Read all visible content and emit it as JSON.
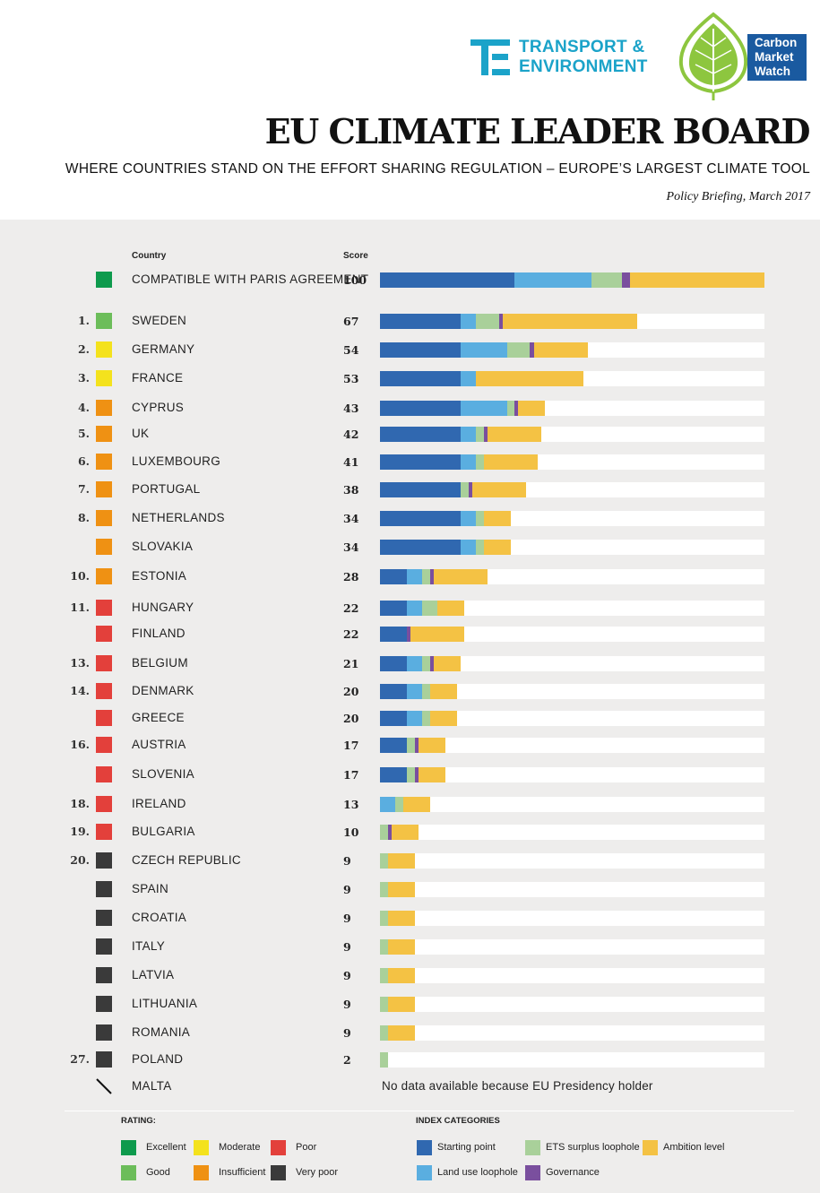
{
  "header": {
    "te_logo_line1": "TRANSPORT &",
    "te_logo_line2": "ENVIRONMENT",
    "cmw_logo_lines": [
      "Carbon",
      "Market",
      "Watch"
    ],
    "title": "EU CLIMATE LEADER BOARD",
    "subtitle": "WHERE COUNTRIES STAND ON THE EFFORT SHARING REGULATION – EUROPE’S LARGEST CLIMATE TOOL",
    "policy_note": "Policy Briefing, March 2017"
  },
  "columns": {
    "country": "Country",
    "score": "Score"
  },
  "colors": {
    "rating": {
      "excellent": "#0e9a4d",
      "good": "#6cbd5a",
      "moderate": "#f4e21d",
      "insufficient": "#ef9113",
      "poor": "#e3403b",
      "very_poor": "#3a3a3a"
    },
    "category": {
      "starting_point": "#3068b0",
      "land_use_loophole": "#5aaee0",
      "ets_surplus_loophole": "#a9d09a",
      "governance": "#7a4f9e",
      "ambition_level": "#f4c244"
    }
  },
  "chart_data": {
    "type": "bar",
    "stacked": true,
    "orientation": "horizontal",
    "title": "EU CLIMATE LEADER BOARD",
    "xlim": [
      0,
      100
    ],
    "series_names": [
      "Starting point",
      "Land use loophole",
      "ETS surplus loophole",
      "Governance",
      "Ambition level"
    ],
    "rows": [
      {
        "rank": "",
        "country": "COMPATIBLE WITH PARIS AGREEMENT",
        "score": "100",
        "rating": "excellent",
        "values": [
          35,
          20,
          8,
          2,
          35
        ]
      },
      {
        "rank": "1.",
        "country": "SWEDEN",
        "score": "67",
        "rating": "good",
        "values": [
          21,
          4,
          6,
          1,
          35
        ]
      },
      {
        "rank": "2.",
        "country": "GERMANY",
        "score": "54",
        "rating": "moderate",
        "values": [
          21,
          12,
          6,
          1,
          14
        ]
      },
      {
        "rank": "3.",
        "country": "FRANCE",
        "score": "53",
        "rating": "moderate",
        "values": [
          21,
          4,
          0,
          0,
          28
        ]
      },
      {
        "rank": "4.",
        "country": "CYPRUS",
        "score": "43",
        "rating": "insufficient",
        "values": [
          21,
          12,
          2,
          1,
          7
        ]
      },
      {
        "rank": "5.",
        "country": "UK",
        "score": "42",
        "rating": "insufficient",
        "values": [
          21,
          4,
          2,
          1,
          14
        ]
      },
      {
        "rank": "6.",
        "country": "LUXEMBOURG",
        "score": "41",
        "rating": "insufficient",
        "values": [
          21,
          4,
          2,
          0,
          14
        ]
      },
      {
        "rank": "7.",
        "country": "PORTUGAL",
        "score": "38",
        "rating": "insufficient",
        "values": [
          21,
          0,
          2,
          1,
          14
        ]
      },
      {
        "rank": "8.",
        "country": "NETHERLANDS",
        "score": "34",
        "rating": "insufficient",
        "values": [
          21,
          4,
          2,
          0,
          7
        ]
      },
      {
        "rank": "",
        "country": "SLOVAKIA",
        "score": "34",
        "rating": "insufficient",
        "values": [
          21,
          4,
          2,
          0,
          7
        ]
      },
      {
        "rank": "10.",
        "country": "ESTONIA",
        "score": "28",
        "rating": "insufficient",
        "values": [
          7,
          4,
          2,
          1,
          14
        ]
      },
      {
        "rank": "11.",
        "country": "HUNGARY",
        "score": "22",
        "rating": "poor",
        "values": [
          7,
          4,
          4,
          0,
          7
        ]
      },
      {
        "rank": "",
        "country": "FINLAND",
        "score": "22",
        "rating": "poor",
        "values": [
          7,
          0,
          0,
          1,
          14
        ]
      },
      {
        "rank": "13.",
        "country": "BELGIUM",
        "score": "21",
        "rating": "poor",
        "values": [
          7,
          4,
          2,
          1,
          7
        ]
      },
      {
        "rank": "14.",
        "country": "DENMARK",
        "score": "20",
        "rating": "poor",
        "values": [
          7,
          4,
          2,
          0,
          7
        ]
      },
      {
        "rank": "",
        "country": "GREECE",
        "score": "20",
        "rating": "poor",
        "values": [
          7,
          4,
          2,
          0,
          7
        ]
      },
      {
        "rank": "16.",
        "country": "AUSTRIA",
        "score": "17",
        "rating": "poor",
        "values": [
          7,
          0,
          2,
          1,
          7
        ]
      },
      {
        "rank": "",
        "country": "SLOVENIA",
        "score": "17",
        "rating": "poor",
        "values": [
          7,
          0,
          2,
          1,
          7
        ]
      },
      {
        "rank": "18.",
        "country": "IRELAND",
        "score": "13",
        "rating": "poor",
        "values": [
          0,
          4,
          2,
          0,
          7
        ]
      },
      {
        "rank": "19.",
        "country": "BULGARIA",
        "score": "10",
        "rating": "poor",
        "values": [
          0,
          0,
          2,
          1,
          7
        ]
      },
      {
        "rank": "20.",
        "country": "CZECH REPUBLIC",
        "score": "9",
        "rating": "very_poor",
        "values": [
          0,
          0,
          2,
          0,
          7
        ]
      },
      {
        "rank": "",
        "country": "SPAIN",
        "score": "9",
        "rating": "very_poor",
        "values": [
          0,
          0,
          2,
          0,
          7
        ]
      },
      {
        "rank": "",
        "country": "CROATIA",
        "score": "9",
        "rating": "very_poor",
        "values": [
          0,
          0,
          2,
          0,
          7
        ]
      },
      {
        "rank": "",
        "country": "ITALY",
        "score": "9",
        "rating": "very_poor",
        "values": [
          0,
          0,
          2,
          0,
          7
        ]
      },
      {
        "rank": "",
        "country": "LATVIA",
        "score": "9",
        "rating": "very_poor",
        "values": [
          0,
          0,
          2,
          0,
          7
        ]
      },
      {
        "rank": "",
        "country": "LITHUANIA",
        "score": "9",
        "rating": "very_poor",
        "values": [
          0,
          0,
          2,
          0,
          7
        ]
      },
      {
        "rank": "",
        "country": "ROMANIA",
        "score": "9",
        "rating": "very_poor",
        "values": [
          0,
          0,
          2,
          0,
          7
        ]
      },
      {
        "rank": "27.",
        "country": "POLAND",
        "score": "2",
        "rating": "very_poor",
        "values": [
          0,
          0,
          2,
          0,
          0
        ]
      },
      {
        "rank": "",
        "country": "MALTA",
        "score": "",
        "rating": "none",
        "values": [],
        "note": "No data available because EU Presidency holder"
      }
    ]
  },
  "legend": {
    "rating_title": "RATING:",
    "rating_items": [
      {
        "label": "Excellent",
        "key": "excellent"
      },
      {
        "label": "Moderate",
        "key": "moderate"
      },
      {
        "label": "Poor",
        "key": "poor"
      },
      {
        "label": "Good",
        "key": "good"
      },
      {
        "label": "Insufficient",
        "key": "insufficient"
      },
      {
        "label": "Very poor",
        "key": "very_poor"
      }
    ],
    "category_title": "INDEX CATEGORIES",
    "category_items": [
      {
        "label": "Starting point",
        "key": "starting_point"
      },
      {
        "label": "ETS surplus loophole",
        "key": "ets_surplus_loophole"
      },
      {
        "label": "Ambition level",
        "key": "ambition_level"
      },
      {
        "label": "Land use loophole",
        "key": "land_use_loophole"
      },
      {
        "label": "Governance",
        "key": "governance"
      }
    ]
  }
}
